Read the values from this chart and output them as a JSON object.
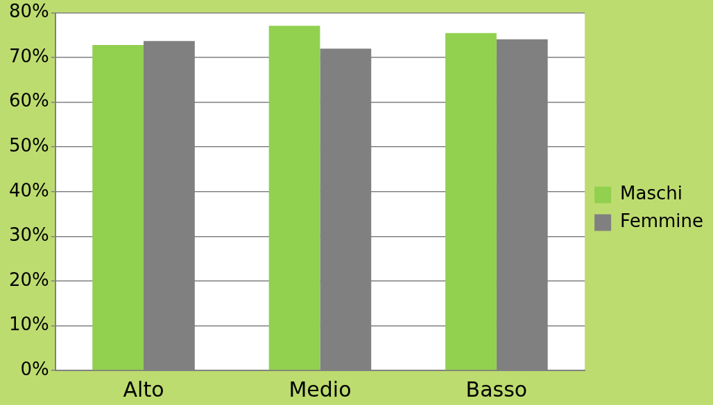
{
  "chart_data": {
    "type": "bar",
    "categories": [
      "Alto",
      "Medio",
      "Basso"
    ],
    "series": [
      {
        "name": "Maschi",
        "color": "#92d050",
        "values": [
          72.8,
          77.1,
          75.5
        ]
      },
      {
        "name": "Femmine",
        "color": "#808080",
        "values": [
          73.7,
          72.0,
          74.1
        ]
      }
    ],
    "ylim": [
      0,
      80
    ],
    "yticks": [
      {
        "value": 0,
        "label": "0%"
      },
      {
        "value": 10,
        "label": "10%"
      },
      {
        "value": 20,
        "label": "20%"
      },
      {
        "value": 30,
        "label": "30%"
      },
      {
        "value": 40,
        "label": "40%"
      },
      {
        "value": 50,
        "label": "50%"
      },
      {
        "value": 60,
        "label": "60%"
      },
      {
        "value": 70,
        "label": "70%"
      },
      {
        "value": 80,
        "label": "80%"
      }
    ],
    "grid": "y",
    "legend": "right"
  }
}
